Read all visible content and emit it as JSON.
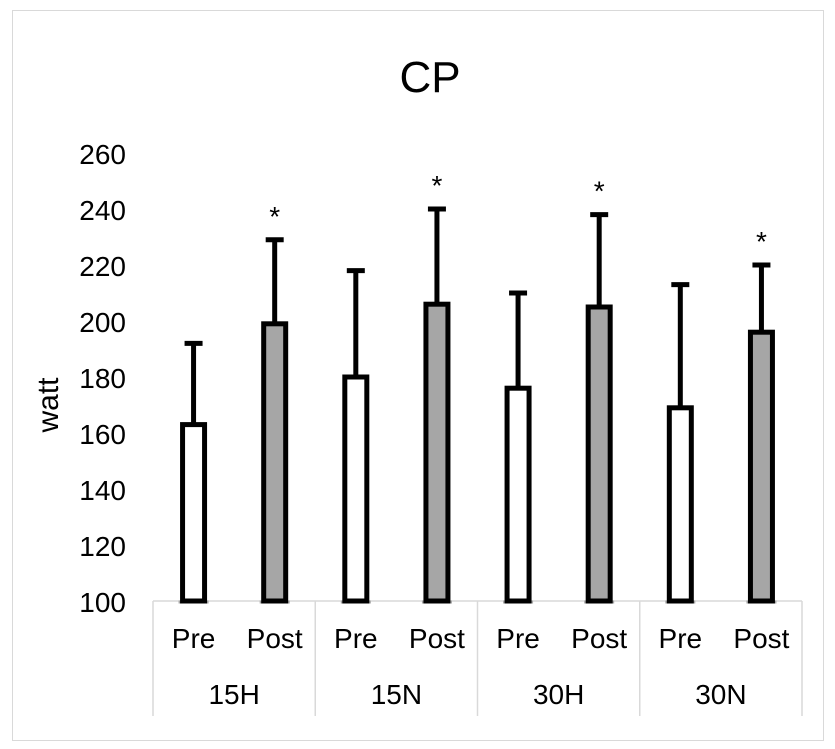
{
  "chart_data": {
    "type": "bar",
    "title": "CP",
    "xlabel": "",
    "ylabel": "watt",
    "ylim": [
      100,
      260
    ],
    "yticks": [
      100,
      120,
      140,
      160,
      180,
      200,
      220,
      240,
      260
    ],
    "grid": false,
    "groups": [
      "15H",
      "15N",
      "30H",
      "30N"
    ],
    "subcategories": [
      "Pre",
      "Post"
    ],
    "colors": {
      "Pre": "#ffffff",
      "Post": "#a6a6a6",
      "outline": "#000000"
    },
    "bars": [
      {
        "group": "15H",
        "sub": "Pre",
        "value": 163,
        "error": 29,
        "significance": ""
      },
      {
        "group": "15H",
        "sub": "Post",
        "value": 199,
        "error": 30,
        "significance": "*"
      },
      {
        "group": "15N",
        "sub": "Pre",
        "value": 180,
        "error": 38,
        "significance": ""
      },
      {
        "group": "15N",
        "sub": "Post",
        "value": 206,
        "error": 34,
        "significance": "*"
      },
      {
        "group": "30H",
        "sub": "Pre",
        "value": 176,
        "error": 34,
        "significance": ""
      },
      {
        "group": "30H",
        "sub": "Post",
        "value": 205,
        "error": 33,
        "significance": "*"
      },
      {
        "group": "30N",
        "sub": "Pre",
        "value": 169,
        "error": 44,
        "significance": ""
      },
      {
        "group": "30N",
        "sub": "Post",
        "value": 196,
        "error": 24,
        "significance": "*"
      }
    ]
  }
}
